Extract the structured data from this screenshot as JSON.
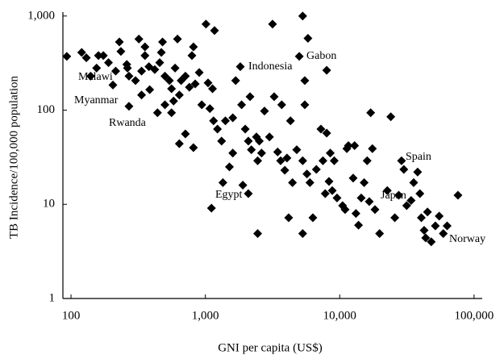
{
  "chart_data": {
    "type": "scatter",
    "x_label": "GNI per capita (US$)",
    "y_label": "TB Incidence/100,000 population",
    "xscale": "log",
    "yscale": "log",
    "xlim": [
      87,
      115000
    ],
    "ylim": [
      1,
      1100
    ],
    "xticks": [
      100,
      {
        "value": 1000,
        "label": "1,000"
      },
      {
        "value": 10000,
        "label": "10,000"
      },
      {
        "value": 100000,
        "label": "100,000"
      }
    ],
    "yticks": [
      1,
      10,
      100,
      {
        "value": 1000,
        "label": "1,000"
      }
    ],
    "annotations": [
      "Malawi",
      "Myanmar",
      "Rwanda",
      "Indonesia",
      "Gabon",
      "Egypt",
      "Spain",
      "Japan",
      "Norway"
    ],
    "color": "#000000",
    "x": [
      93,
      120,
      130,
      160,
      174,
      140,
      155,
      190,
      215,
      229,
      235,
      260,
      270,
      302,
      320,
      335,
      355,
      380,
      385,
      420,
      457,
      470,
      480,
      500,
      540,
      560,
      580,
      595,
      620,
      640,
      660,
      710,
      760,
      794,
      815,
      840,
      900,
      1010,
      1047,
      1080,
      1130,
      1170,
      440,
      335,
      270,
      500,
      560,
      640,
      710,
      815,
      940,
      263,
      355,
      205,
      1150,
      1230,
      1320,
      1410,
      1510,
      1600,
      1680,
      1820,
      1860,
      1980,
      2089,
      2150,
      2200,
      2399,
      2450,
      2520,
      2620,
      2754,
      3000,
      3162,
      3250,
      3450,
      3631,
      3700,
      3900,
      4050,
      4300,
      4450,
      4786,
      5000,
      5300,
      5800,
      5300,
      5495,
      5700,
      6000,
      6310,
      6700,
      7244,
      7500,
      7800,
      8000,
      8318,
      8500,
      8800,
      9100,
      9550,
      10500,
      10965,
      11300,
      11600,
      12589,
      12900,
      13200,
      13800,
      14454,
      15200,
      16000,
      16596,
      17000,
      17500,
      18300,
      19800,
      22600,
      24000,
      25700,
      27500,
      28840,
      30000,
      31500,
      34000,
      35500,
      38000,
      39500,
      40500,
      42500,
      43652,
      45000,
      48000,
      51500,
      55000,
      59000,
      63000,
      75858,
      5300,
      4169,
      2450,
      1110,
      8000,
      5495,
      1900,
      2089,
      1600,
      1350
    ],
    "values": [
      373,
      410,
      360,
      380,
      380,
      230,
      280,
      320,
      260,
      530,
      420,
      306,
      230,
      206,
      570,
      260,
      380,
      290,
      165,
      270,
      320,
      410,
      530,
      230,
      206,
      169,
      125,
      280,
      570,
      145,
      206,
      230,
      175,
      380,
      470,
      190,
      251,
      821,
      195,
      104,
      169,
      700,
      94,
      145,
      110,
      114,
      94,
      44,
      56,
      40,
      114,
      280,
      470,
      185,
      77,
      63,
      47,
      77,
      25,
      83,
      206,
      290,
      114,
      63,
      47,
      139,
      38,
      52,
      29,
      47,
      35,
      98,
      52,
      821,
      139,
      36,
      29,
      114,
      23,
      31,
      77,
      17,
      38,
      373,
      1000,
      580,
      29,
      114,
      21,
      17,
      7.2,
      23.5,
      63,
      29,
      13,
      57,
      17.5,
      35,
      14,
      29,
      11.7,
      9.7,
      8.8,
      39,
      42,
      19,
      42,
      8,
      6,
      11.7,
      17,
      29,
      10.7,
      94,
      39,
      8.8,
      4.9,
      14,
      85,
      7.2,
      12.5,
      29,
      23.5,
      9.7,
      11,
      17,
      22,
      13,
      7.2,
      5.3,
      4.4,
      8.3,
      4,
      5.9,
      7.5,
      4.9,
      5.9,
      12.5,
      4.9,
      7.2,
      4.9,
      9.1,
      265,
      206,
      16,
      13,
      35,
      17
    ]
  }
}
